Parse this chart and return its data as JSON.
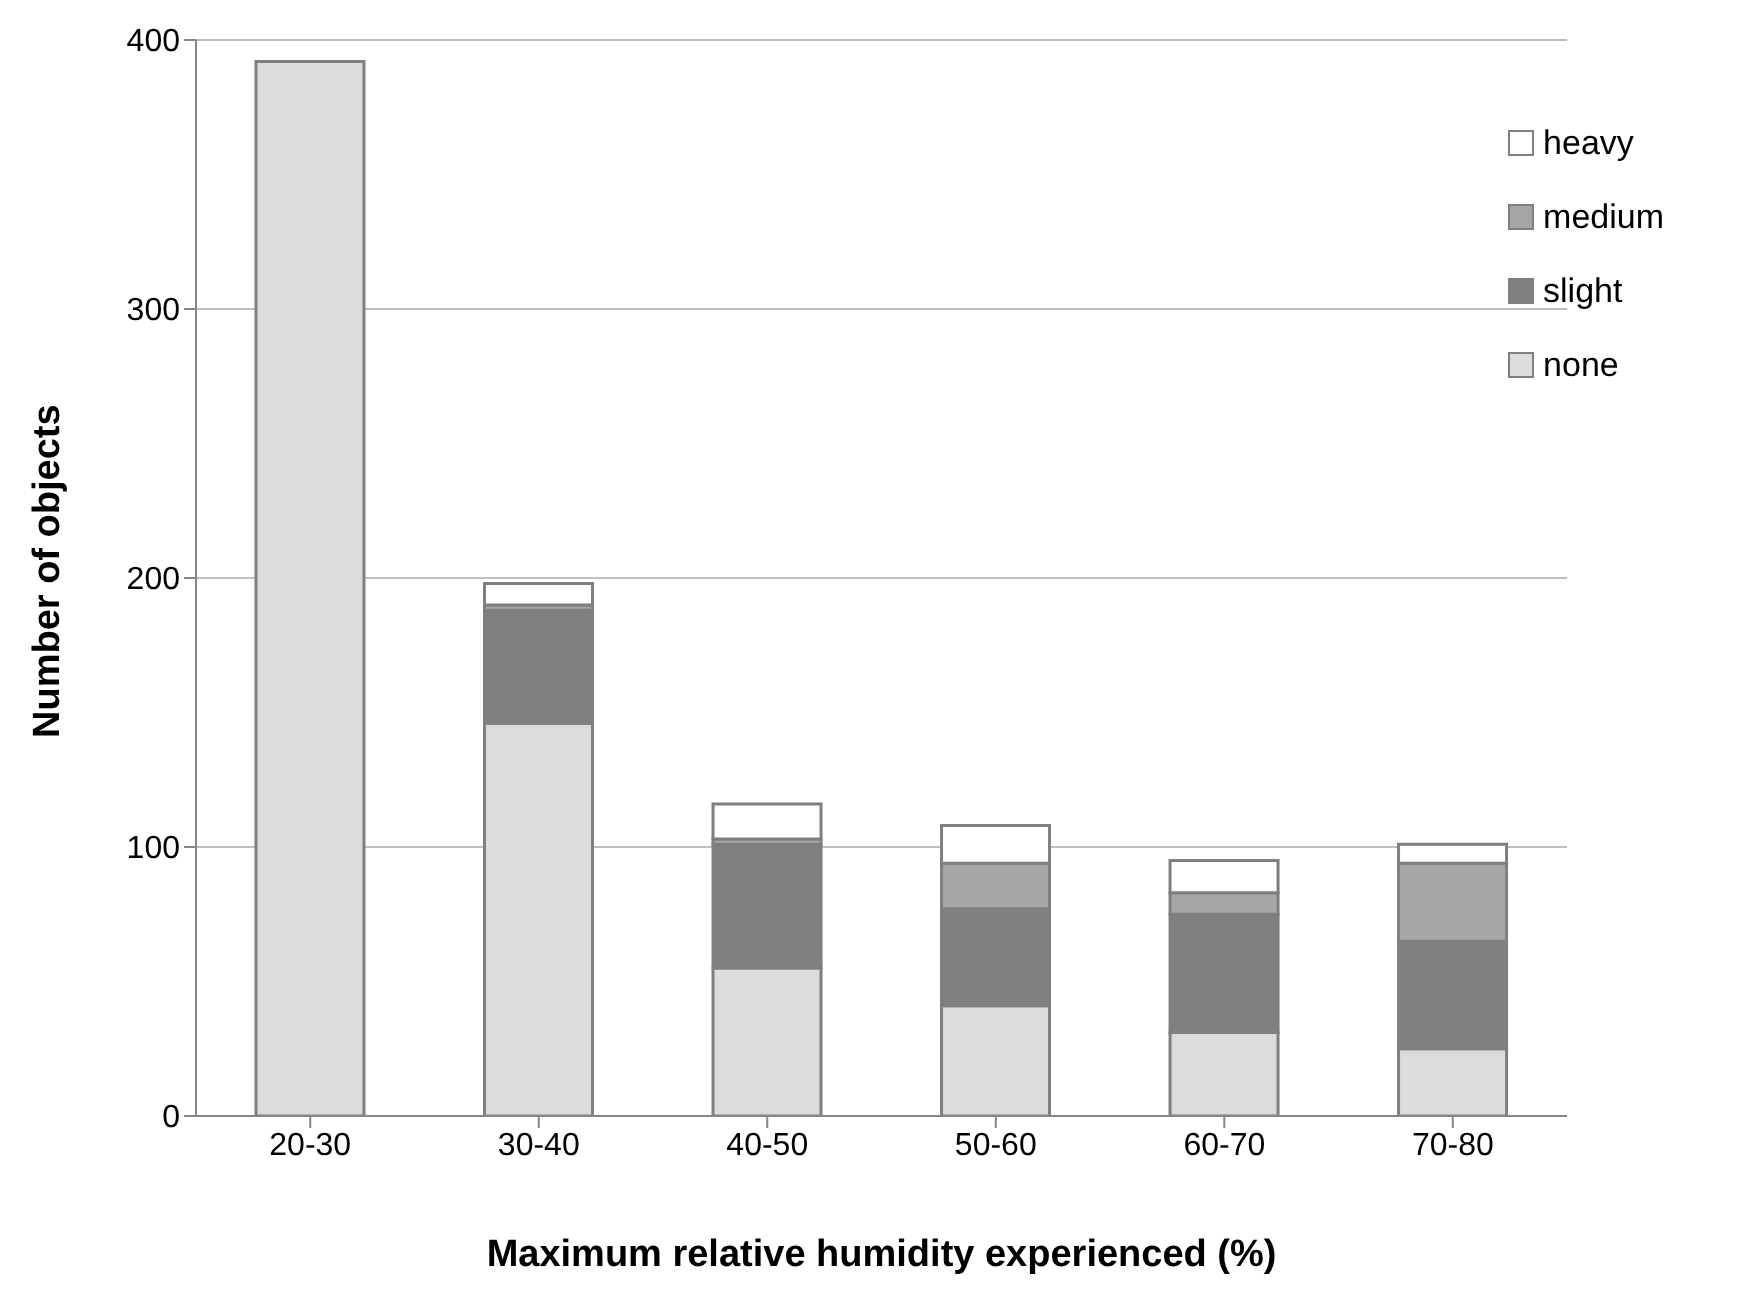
{
  "chart_data": {
    "type": "bar",
    "stacked": true,
    "xlabel": "Maximum relative humidity experienced (%)",
    "ylabel": "Number of objects",
    "categories": [
      "20-30",
      "30-40",
      "40-50",
      "50-60",
      "60-70",
      "70-80"
    ],
    "series": [
      {
        "name": "none",
        "color": "#dcdcdc",
        "values": [
          392,
          146,
          55,
          41,
          31,
          25
        ]
      },
      {
        "name": "slight",
        "color": "#808080",
        "values": [
          0,
          42,
          46,
          36,
          44,
          40
        ]
      },
      {
        "name": "medium",
        "color": "#a6a6a6",
        "values": [
          0,
          2,
          2,
          17,
          8,
          29
        ]
      },
      {
        "name": "heavy",
        "color": "#ffffff",
        "values": [
          0,
          8,
          13,
          14,
          12,
          7
        ]
      }
    ],
    "ylim": [
      0,
      400
    ],
    "yticks": [
      0,
      100,
      200,
      300,
      400
    ],
    "grid": "y",
    "legend": "top right"
  }
}
